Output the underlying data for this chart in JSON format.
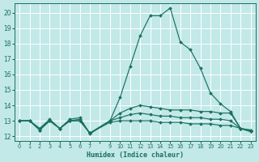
{
  "xlabel": "Humidex (Indice chaleur)",
  "bg_color": "#c2e8e8",
  "grid_color": "#ffffff",
  "line_color": "#1a7060",
  "xlim": [
    -0.5,
    23.5
  ],
  "ylim": [
    11.7,
    20.6
  ],
  "xtick_positions": [
    0,
    1,
    2,
    3,
    4,
    5,
    6,
    7,
    8,
    9,
    10,
    11,
    12,
    13,
    14,
    15,
    16,
    17,
    18,
    19,
    20,
    21,
    22,
    23
  ],
  "xtick_labels": [
    "0",
    "1",
    "2",
    "3",
    "4",
    "5",
    "6",
    "7",
    "",
    "9",
    "10",
    "11",
    "12",
    "13",
    "14",
    "15",
    "16",
    "17",
    "18",
    "19",
    "20",
    "21",
    "22",
    "23"
  ],
  "yticks": [
    12,
    13,
    14,
    15,
    16,
    17,
    18,
    19,
    20
  ],
  "lines": [
    {
      "x": [
        0,
        1,
        2,
        3,
        4,
        5,
        6,
        7,
        9,
        10,
        11,
        12,
        13,
        14,
        15,
        16,
        17,
        18,
        19,
        20,
        21,
        22,
        23
      ],
      "y": [
        13.0,
        13.0,
        12.5,
        13.1,
        12.5,
        13.1,
        13.2,
        12.15,
        13.0,
        14.5,
        16.5,
        18.5,
        19.8,
        19.8,
        20.3,
        18.1,
        17.6,
        16.4,
        14.8,
        14.1,
        13.6,
        12.5,
        12.4
      ]
    },
    {
      "x": [
        0,
        1,
        2,
        3,
        4,
        5,
        6,
        7,
        9,
        10,
        11,
        12,
        13,
        14,
        15,
        16,
        17,
        18,
        19,
        20,
        21,
        22,
        23
      ],
      "y": [
        13.0,
        13.0,
        12.5,
        13.0,
        12.5,
        13.0,
        13.1,
        12.2,
        13.0,
        13.5,
        13.8,
        14.0,
        13.9,
        13.8,
        13.7,
        13.7,
        13.7,
        13.6,
        13.6,
        13.5,
        13.5,
        12.5,
        12.4
      ]
    },
    {
      "x": [
        0,
        1,
        2,
        3,
        4,
        5,
        6,
        7,
        9,
        10,
        11,
        12,
        13,
        14,
        15,
        16,
        17,
        18,
        19,
        20,
        21,
        22,
        23
      ],
      "y": [
        13.0,
        13.0,
        12.4,
        13.0,
        12.5,
        13.0,
        13.0,
        12.2,
        13.0,
        13.2,
        13.4,
        13.5,
        13.4,
        13.3,
        13.3,
        13.2,
        13.2,
        13.2,
        13.1,
        13.1,
        13.0,
        12.5,
        12.3
      ]
    },
    {
      "x": [
        0,
        1,
        2,
        3,
        4,
        5,
        6,
        7,
        9,
        10,
        11,
        12,
        13,
        14,
        15,
        16,
        17,
        18,
        19,
        20,
        21,
        22,
        23
      ],
      "y": [
        13.0,
        13.0,
        12.4,
        13.0,
        12.5,
        13.0,
        13.0,
        12.2,
        12.9,
        13.0,
        13.0,
        13.0,
        13.0,
        12.9,
        12.9,
        12.9,
        12.8,
        12.8,
        12.8,
        12.7,
        12.7,
        12.5,
        12.3
      ]
    }
  ]
}
